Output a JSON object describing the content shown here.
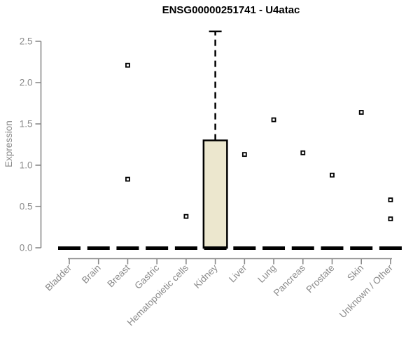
{
  "chart_data": {
    "type": "boxplot",
    "title": "ENSG00000251741 - U4atac",
    "ylabel": "Expression",
    "xlabel": "",
    "ylim": [
      0,
      2.65
    ],
    "yticks": [
      "0.0",
      "0.5",
      "1.0",
      "1.5",
      "2.0",
      "2.5"
    ],
    "grid": false,
    "legend": "none",
    "categories": [
      "Bladder",
      "Brain",
      "Breast",
      "Gastric",
      "Hematopoietic cells",
      "Kidney",
      "Liver",
      "Lung",
      "Pancreas",
      "Prostate",
      "Skin",
      "Unknown / Other"
    ],
    "boxes": [
      {
        "category": "Bladder",
        "median": 0,
        "q1": 0,
        "q3": 0,
        "whisker_low": 0,
        "whisker_high": 0,
        "outliers": []
      },
      {
        "category": "Brain",
        "median": 0,
        "q1": 0,
        "q3": 0,
        "whisker_low": 0,
        "whisker_high": 0,
        "outliers": []
      },
      {
        "category": "Breast",
        "median": 0,
        "q1": 0,
        "q3": 0,
        "whisker_low": 0,
        "whisker_high": 0,
        "outliers": [
          2.21,
          0.83
        ]
      },
      {
        "category": "Gastric",
        "median": 0,
        "q1": 0,
        "q3": 0,
        "whisker_low": 0,
        "whisker_high": 0,
        "outliers": []
      },
      {
        "category": "Hematopoietic cells",
        "median": 0,
        "q1": 0,
        "q3": 0,
        "whisker_low": 0,
        "whisker_high": 0,
        "outliers": [
          0.38
        ]
      },
      {
        "category": "Kidney",
        "median": 0,
        "q1": 0,
        "q3": 1.3,
        "whisker_low": 0,
        "whisker_high": 2.62,
        "outliers": []
      },
      {
        "category": "Liver",
        "median": 0,
        "q1": 0,
        "q3": 0,
        "whisker_low": 0,
        "whisker_high": 0,
        "outliers": [
          1.13
        ]
      },
      {
        "category": "Lung",
        "median": 0,
        "q1": 0,
        "q3": 0,
        "whisker_low": 0,
        "whisker_high": 0,
        "outliers": [
          1.55
        ]
      },
      {
        "category": "Pancreas",
        "median": 0,
        "q1": 0,
        "q3": 0,
        "whisker_low": 0,
        "whisker_high": 0,
        "outliers": [
          1.15
        ]
      },
      {
        "category": "Prostate",
        "median": 0,
        "q1": 0,
        "q3": 0,
        "whisker_low": 0,
        "whisker_high": 0,
        "outliers": [
          0.88
        ]
      },
      {
        "category": "Skin",
        "median": 0,
        "q1": 0,
        "q3": 0,
        "whisker_low": 0,
        "whisker_high": 0,
        "outliers": [
          1.64
        ]
      },
      {
        "category": "Unknown / Other",
        "median": 0,
        "q1": 0,
        "q3": 0,
        "whisker_low": 0,
        "whisker_high": 0,
        "outliers": [
          0.58,
          0.35
        ]
      }
    ],
    "colors": {
      "box_fill": "#ECE7CE",
      "box_stroke": "#000000",
      "axis": "#8A8A8A",
      "tick_text": "#8A8A8A",
      "title_text": "#000000",
      "background": "#FFFFFF"
    }
  }
}
